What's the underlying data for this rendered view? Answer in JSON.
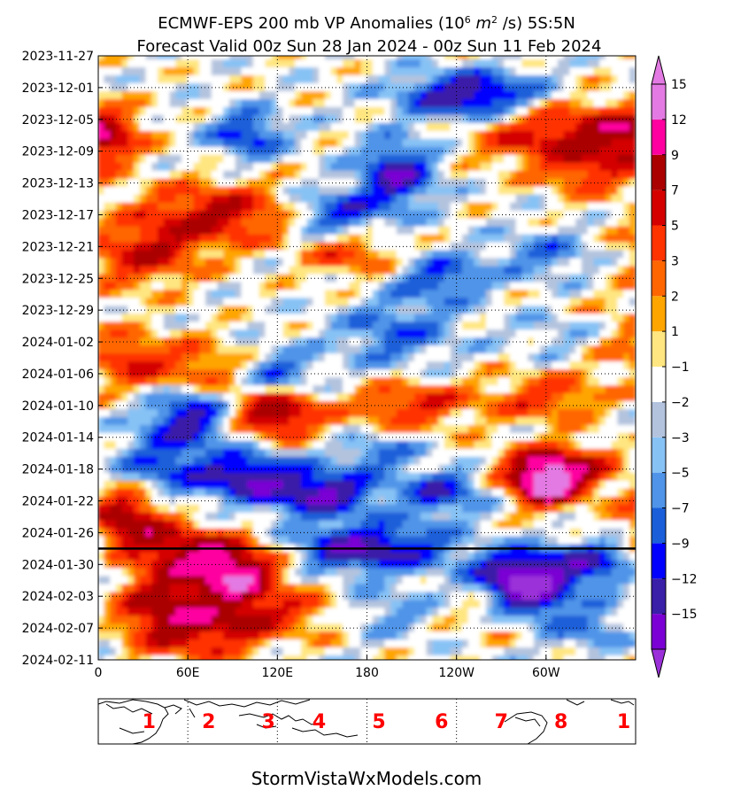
{
  "chart_data": {
    "type": "heatmap",
    "title_line1": "ECMWF-EPS 200 mb VP Anomalies (10",
    "title_sup1": "6",
    "title_mid1": " m",
    "title_sup2": "2",
    "title_end1": " /s) 5S:5N",
    "title_line2": "Forecast Valid 00z Sun 28 Jan 2024 - 00z Sun 11 Feb 2024",
    "y_ticks": [
      "2023-11-27",
      "2023-12-01",
      "2023-12-05",
      "2023-12-09",
      "2023-12-13",
      "2023-12-17",
      "2023-12-21",
      "2023-12-25",
      "2023-12-29",
      "2024-01-02",
      "2024-01-06",
      "2024-01-10",
      "2024-01-14",
      "2024-01-18",
      "2024-01-22",
      "2024-01-26",
      "2024-01-30",
      "2024-02-03",
      "2024-02-07",
      "2024-02-11"
    ],
    "x_ticks": [
      "0",
      "60E",
      "120E",
      "180",
      "120W",
      "60W"
    ],
    "x_tick_lon": [
      0,
      60,
      120,
      180,
      240,
      300
    ],
    "x_range_lon": [
      0,
      360
    ],
    "y_range": [
      "2023-11-27",
      "2024-02-11"
    ],
    "forecast_start_line": "2024-01-28",
    "grid": true,
    "colorbar": {
      "levels": [
        -15,
        -12,
        -9,
        -7,
        -5,
        -3,
        -2,
        -1,
        1,
        2,
        3,
        5,
        7,
        9,
        12,
        15
      ],
      "labels": [
        "15",
        "12",
        "9",
        "7",
        "5",
        "3",
        "2",
        "1",
        "−1",
        "−2",
        "−3",
        "−5",
        "−7",
        "−9",
        "−12",
        "−15"
      ],
      "colors": [
        "#7a00d4",
        "#3a1fa8",
        "#0000ff",
        "#1a5fd9",
        "#4f94e8",
        "#87c2f5",
        "#b3c3de",
        "#ffffff",
        "#ffe680",
        "#ffa500",
        "#ff6600",
        "#ff3300",
        "#d40000",
        "#aa0000",
        "#ff00a0",
        "#e37ae3"
      ],
      "over_color": "#e37ae3",
      "under_color": "#9b30d9"
    },
    "mjo_phases": [
      "1",
      "2",
      "3",
      "4",
      "5",
      "6",
      "7",
      "8",
      "1"
    ],
    "phase_lon": [
      17,
      37,
      57,
      74,
      94,
      115,
      135,
      155,
      176
    ]
  },
  "credit": "StormVistaWxModels.com"
}
